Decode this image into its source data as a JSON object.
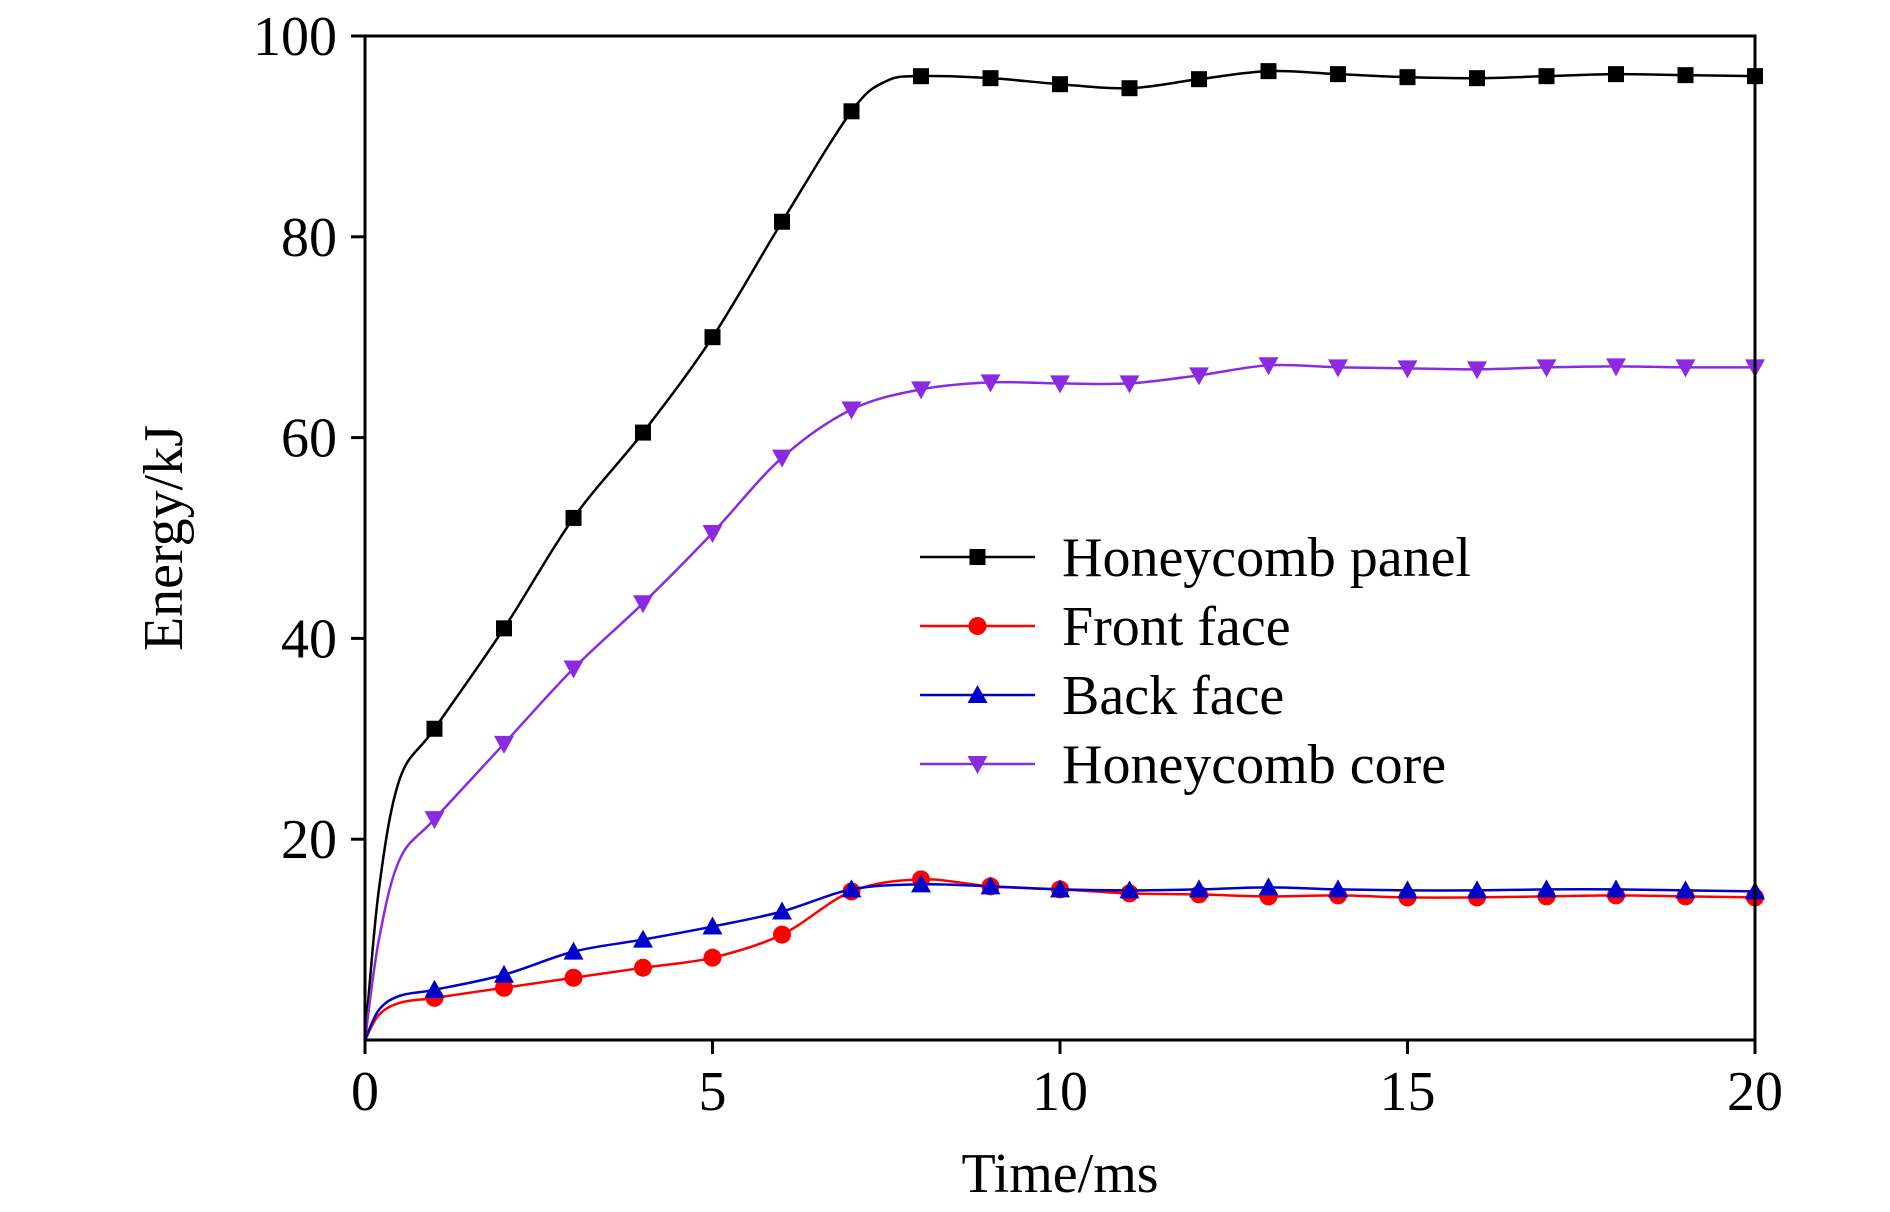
{
  "chart_data": {
    "type": "line",
    "title": "",
    "xlabel": "Time/ms",
    "ylabel": "Energy/kJ",
    "xlim": [
      0,
      20
    ],
    "ylim": [
      0,
      100
    ],
    "xticks": [
      0,
      5,
      10,
      15,
      20
    ],
    "xtick_labels": [
      "0",
      "5",
      "10",
      "15",
      "20"
    ],
    "yticks": [
      20,
      40,
      60,
      80,
      100
    ],
    "ytick_labels": [
      "20",
      "40",
      "60",
      "80",
      "100"
    ],
    "grid": false,
    "legend_position": "center-right",
    "series": [
      {
        "name": "Honeycomb panel",
        "color": "#000000",
        "marker": "square",
        "curve": [
          [
            0,
            0
          ],
          [
            0.2,
            15
          ],
          [
            0.5,
            26
          ],
          [
            1,
            31
          ],
          [
            2,
            41
          ],
          [
            3,
            52
          ],
          [
            4,
            60.5
          ],
          [
            5,
            70
          ],
          [
            6,
            81.5
          ],
          [
            7,
            92.5
          ],
          [
            7.5,
            95.5
          ],
          [
            8,
            96
          ],
          [
            9,
            95.8
          ],
          [
            10,
            95.2
          ],
          [
            11,
            94.8
          ],
          [
            12,
            95.7
          ],
          [
            13,
            96.5
          ],
          [
            14,
            96.2
          ],
          [
            15,
            95.9
          ],
          [
            16,
            95.8
          ],
          [
            17,
            96
          ],
          [
            18,
            96.2
          ],
          [
            19,
            96.1
          ],
          [
            20,
            96
          ]
        ],
        "markers": [
          [
            1,
            31
          ],
          [
            2,
            41
          ],
          [
            3,
            52
          ],
          [
            4,
            60.5
          ],
          [
            5,
            70
          ],
          [
            6,
            81.5
          ],
          [
            7,
            92.5
          ],
          [
            8,
            96
          ],
          [
            9,
            95.8
          ],
          [
            10,
            95.2
          ],
          [
            11,
            94.8
          ],
          [
            12,
            95.7
          ],
          [
            13,
            96.5
          ],
          [
            14,
            96.2
          ],
          [
            15,
            95.9
          ],
          [
            16,
            95.8
          ],
          [
            17,
            96
          ],
          [
            18,
            96.2
          ],
          [
            19,
            96.1
          ],
          [
            20,
            96
          ]
        ]
      },
      {
        "name": "Front face",
        "color": "#ff0000",
        "marker": "circle",
        "curve": [
          [
            0,
            0
          ],
          [
            0.2,
            2.5
          ],
          [
            0.5,
            3.7
          ],
          [
            1,
            4.2
          ],
          [
            2,
            5.2
          ],
          [
            3,
            6.2
          ],
          [
            4,
            7.2
          ],
          [
            5,
            8.2
          ],
          [
            6,
            10.5
          ],
          [
            7,
            14.8
          ],
          [
            8,
            16
          ],
          [
            9,
            15.3
          ],
          [
            10,
            15
          ],
          [
            11,
            14.6
          ],
          [
            12,
            14.5
          ],
          [
            13,
            14.3
          ],
          [
            14,
            14.4
          ],
          [
            15,
            14.2
          ],
          [
            16,
            14.2
          ],
          [
            17,
            14.3
          ],
          [
            18,
            14.4
          ],
          [
            19,
            14.3
          ],
          [
            20,
            14.2
          ]
        ],
        "markers": [
          [
            1,
            4.2
          ],
          [
            2,
            5.2
          ],
          [
            3,
            6.2
          ],
          [
            4,
            7.2
          ],
          [
            5,
            8.2
          ],
          [
            6,
            10.5
          ],
          [
            7,
            14.8
          ],
          [
            8,
            16
          ],
          [
            9,
            15.3
          ],
          [
            10,
            15
          ],
          [
            11,
            14.6
          ],
          [
            12,
            14.5
          ],
          [
            13,
            14.3
          ],
          [
            14,
            14.4
          ],
          [
            15,
            14.2
          ],
          [
            16,
            14.2
          ],
          [
            17,
            14.3
          ],
          [
            18,
            14.4
          ],
          [
            19,
            14.3
          ],
          [
            20,
            14.2
          ]
        ]
      },
      {
        "name": "Back face",
        "color": "#0000cc",
        "marker": "triangle-up",
        "curve": [
          [
            0,
            0
          ],
          [
            0.2,
            3
          ],
          [
            0.5,
            4.4
          ],
          [
            1,
            5
          ],
          [
            2,
            6.5
          ],
          [
            3,
            8.8
          ],
          [
            4,
            10
          ],
          [
            5,
            11.3
          ],
          [
            6,
            12.8
          ],
          [
            7,
            15
          ],
          [
            8,
            15.5
          ],
          [
            9,
            15.3
          ],
          [
            10,
            15
          ],
          [
            11,
            14.9
          ],
          [
            12,
            15
          ],
          [
            13,
            15.2
          ],
          [
            14,
            15
          ],
          [
            15,
            14.9
          ],
          [
            16,
            14.9
          ],
          [
            17,
            15
          ],
          [
            18,
            15
          ],
          [
            19,
            14.9
          ],
          [
            20,
            14.8
          ]
        ],
        "markers": [
          [
            1,
            5
          ],
          [
            2,
            6.5
          ],
          [
            3,
            8.8
          ],
          [
            4,
            10
          ],
          [
            5,
            11.3
          ],
          [
            6,
            12.8
          ],
          [
            7,
            15
          ],
          [
            8,
            15.5
          ],
          [
            9,
            15.3
          ],
          [
            10,
            15
          ],
          [
            11,
            14.9
          ],
          [
            12,
            15
          ],
          [
            13,
            15.2
          ],
          [
            14,
            15
          ],
          [
            15,
            14.9
          ],
          [
            16,
            14.9
          ],
          [
            17,
            15
          ],
          [
            18,
            15
          ],
          [
            19,
            14.9
          ],
          [
            20,
            14.8
          ]
        ]
      },
      {
        "name": "Honeycomb core",
        "color": "#8a2be2",
        "marker": "triangle-down",
        "curve": [
          [
            0,
            0
          ],
          [
            0.2,
            10
          ],
          [
            0.5,
            18
          ],
          [
            1,
            22
          ],
          [
            2,
            29.5
          ],
          [
            3,
            37
          ],
          [
            4,
            43.5
          ],
          [
            5,
            50.5
          ],
          [
            6,
            58
          ],
          [
            7,
            62.8
          ],
          [
            8,
            64.8
          ],
          [
            9,
            65.5
          ],
          [
            10,
            65.4
          ],
          [
            11,
            65.4
          ],
          [
            12,
            66.2
          ],
          [
            13,
            67.2
          ],
          [
            14,
            67
          ],
          [
            15,
            66.9
          ],
          [
            16,
            66.8
          ],
          [
            17,
            67
          ],
          [
            18,
            67.1
          ],
          [
            19,
            67
          ],
          [
            20,
            67
          ]
        ],
        "markers": [
          [
            1,
            22
          ],
          [
            2,
            29.5
          ],
          [
            3,
            37
          ],
          [
            4,
            43.5
          ],
          [
            5,
            50.5
          ],
          [
            6,
            58
          ],
          [
            7,
            62.8
          ],
          [
            8,
            64.8
          ],
          [
            9,
            65.5
          ],
          [
            10,
            65.4
          ],
          [
            11,
            65.4
          ],
          [
            12,
            66.2
          ],
          [
            13,
            67.2
          ],
          [
            14,
            67
          ],
          [
            15,
            66.9
          ],
          [
            16,
            66.8
          ],
          [
            17,
            67
          ],
          [
            18,
            67.1
          ],
          [
            19,
            67
          ],
          [
            20,
            67
          ]
        ]
      }
    ]
  }
}
